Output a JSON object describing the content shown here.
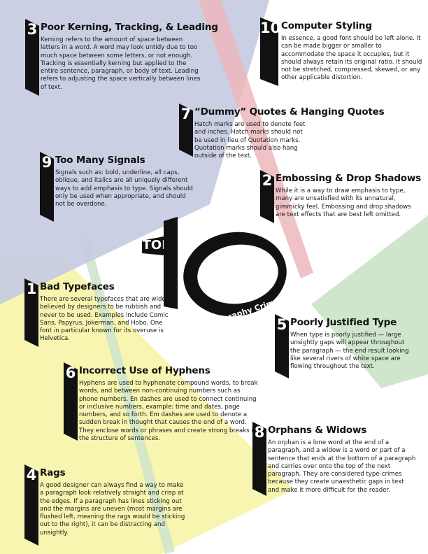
{
  "center": {
    "top_label": "TOP",
    "number": "10",
    "subtitle": "Typography Crimes"
  },
  "items": [
    {
      "number": "3",
      "heading": "Poor Kerning, Tracking, & Leading",
      "text": "Kerning refers to the amount of space between letters in a word. A word may look untidy due to too much space between some letters, or not enough. Tracking is essentially kerning but applied to the entire sentence, paragraph, or body of text. Leading refers to adjusting the space vertically between lines of text."
    },
    {
      "number": "10",
      "heading": "Computer Styling",
      "text": "In essence, a good font should be left alone. It can be made bigger or smaller to accommodate the space it occupies, but it should always retain its original ratio. It should not be stretched, compressed, skewed, or any other applicable distortion."
    },
    {
      "number": "7",
      "heading": "“Dummy” Quotes & Hanging Quotes",
      "text": "Hatch marks are used to denote feet and inches. Hatch marks should not be used in lieu of Quotation marks. Quotation marks should also hang outside of the text."
    },
    {
      "number": "9",
      "heading": "Too Many Signals",
      "text": "Signals such as: bold, underline, all caps, oblique, and italics are all uniquely different ways to add emphasis to type. Signals should only be used when appropriate, and should not be overdone."
    },
    {
      "number": "2",
      "heading": "Embossing & Drop Shadows",
      "text": "While it is a way to draw emphasis to type, many are unsatisfied with its unnatural, gimmicky feel. Embossing and drop shadows are text effects that are best left omitted."
    },
    {
      "number": "1",
      "heading": "Bad Typefaces",
      "text": "There are several typefaces that are widely believed by designers to be rubbish and never to be used. Examples include Comic Sans, Papyrus, Jokerman, and Hobo. One font in particular known for its overuse is Helvetica."
    },
    {
      "number": "5",
      "heading": "Poorly Justified Type",
      "text": "When type is poorly justified — large unsightly gaps will appear throughout the paragraph — the end result looking like several rivers of white space are flowing throughout the text."
    },
    {
      "number": "6",
      "heading": "Incorrect Use of Hyphens",
      "text": "Hyphens are used to hyphenate compound words, to break words, and between non-continuing numbers such as phone numbers. En dashes are used to connect continuing or inclusive numbers, example: time and dates, page numbers, and so forth. Em dashes are used to denote a sudden break in thought that causes the end of a word. They enclose words or phrases and create strong breaks in the structure of sentences."
    },
    {
      "number": "8",
      "heading": "Orphans & Widows",
      "text": "An orphan is a lone word at the end of a paragraph, and a widow is a word or part of a sentence that ends at the bottom of a paragraph and carries over onto the top of the next paragraph. They are considered type-crimes because they create unaesthetic gaps in text and make it more difficult for the reader."
    },
    {
      "number": "4",
      "heading": "Rags",
      "text": "A good designer can always find a way to make a paragraph look relatively straight and crisp at the edges. If a paragraph has lines sticking out and the margins are uneven (most margins are flushed left, meaning the rags would be sticking out to the right), it can be distracting and unsightly."
    }
  ],
  "colors": {
    "blue": "#c5cbe2",
    "pink": "#ecb7bb",
    "yellow": "#f6f4a6",
    "green": "#cfe6cc",
    "ink": "#111111"
  }
}
